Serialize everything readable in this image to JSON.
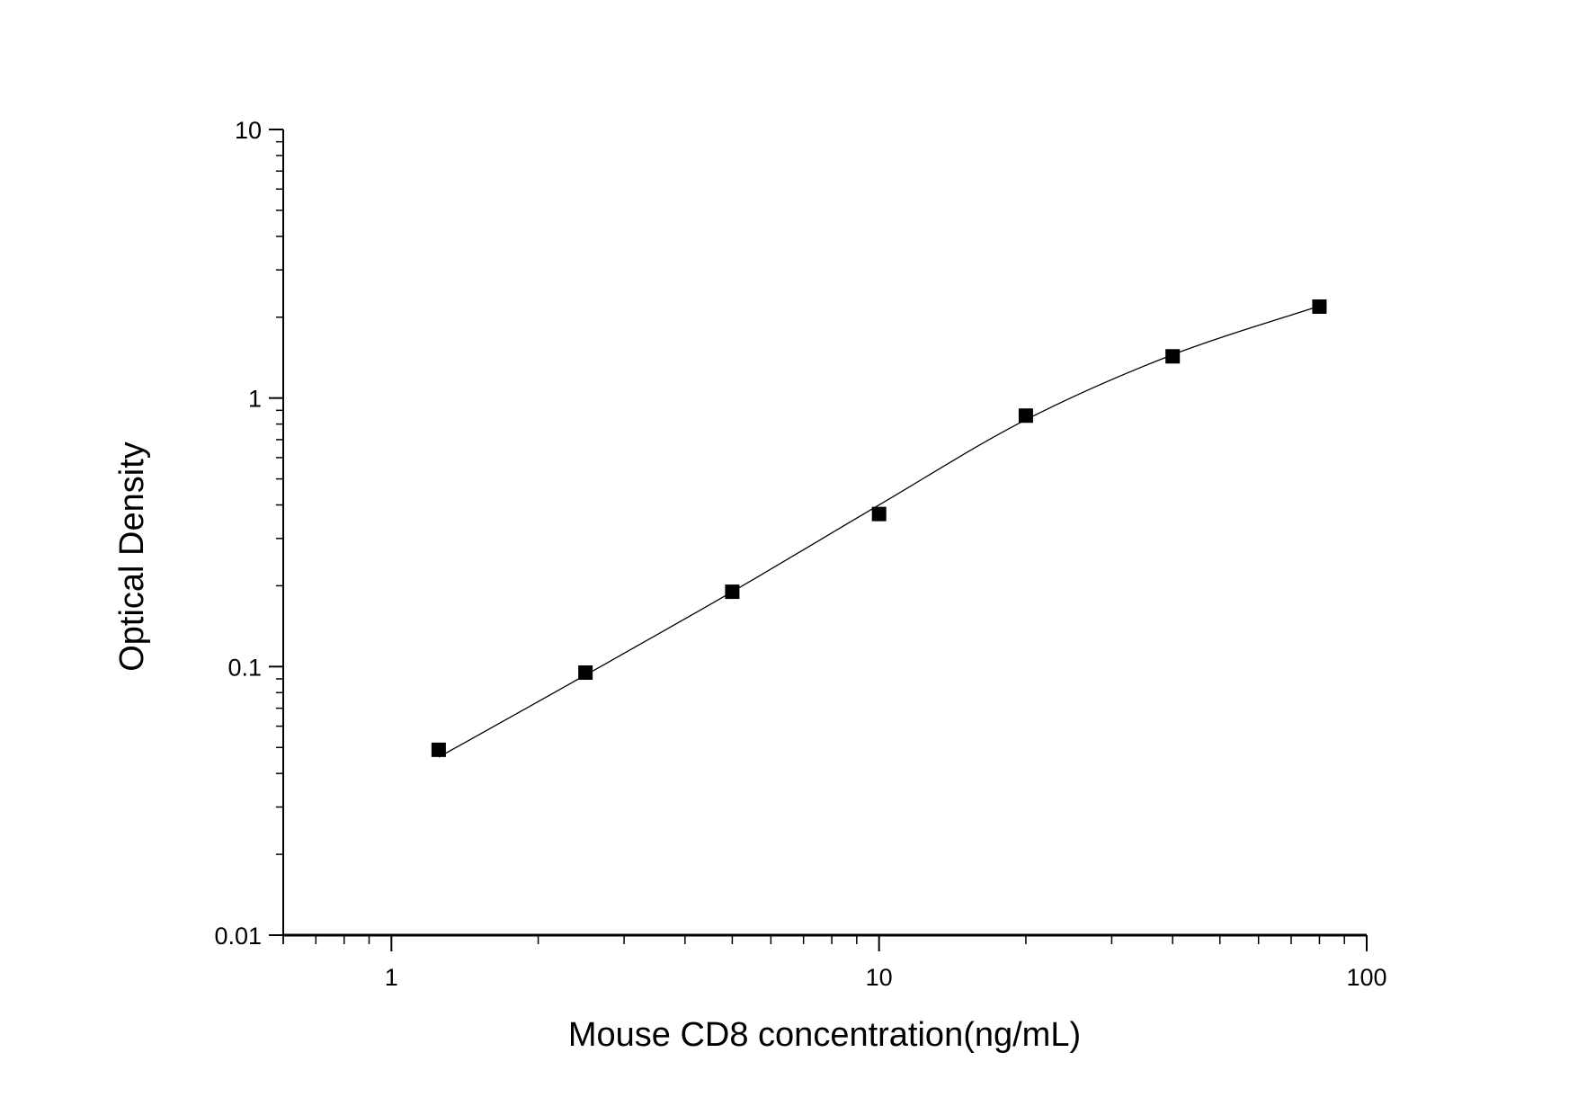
{
  "chart_data": {
    "type": "scatter",
    "title": "",
    "xlabel": "Mouse CD8 concentration(ng/mL)",
    "ylabel": "Optical Density",
    "x_scale": "log",
    "y_scale": "log",
    "xlim": [
      0.6,
      100
    ],
    "ylim": [
      0.01,
      10
    ],
    "x_ticks": [
      {
        "value": 1,
        "label": "1"
      },
      {
        "value": 10,
        "label": "10"
      },
      {
        "value": 100,
        "label": "100"
      }
    ],
    "y_ticks": [
      {
        "value": 0.01,
        "label": "0.01"
      },
      {
        "value": 0.1,
        "label": "0.1"
      },
      {
        "value": 1,
        "label": "1"
      },
      {
        "value": 10,
        "label": "10"
      }
    ],
    "grid": false,
    "series": [
      {
        "marker": "square",
        "color": "#000000",
        "x": [
          1.25,
          2.5,
          5,
          10,
          20,
          40,
          80
        ],
        "y": [
          0.049,
          0.095,
          0.19,
          0.37,
          0.86,
          1.43,
          2.19
        ]
      }
    ],
    "fit_curve": {
      "color": "#000000",
      "x": [
        1.25,
        2.5,
        5,
        10,
        20,
        40,
        80
      ],
      "y": [
        0.046,
        0.093,
        0.19,
        0.4,
        0.83,
        1.45,
        2.2
      ]
    }
  }
}
